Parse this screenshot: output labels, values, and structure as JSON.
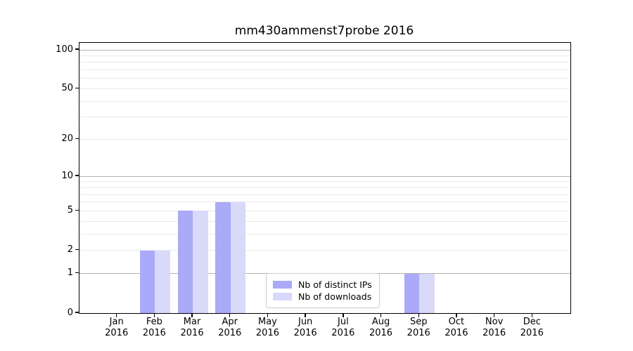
{
  "title": "mm430ammenst7probe 2016",
  "colors": {
    "distinct_ips": "#aaaaf8",
    "downloads": "#d9d9f9",
    "grid_major": "#b3b3b3",
    "grid_minor": "#e9e9e9",
    "axis": "#000000",
    "background": "#ffffff",
    "legend_border": "#cccccc"
  },
  "chart_data": {
    "type": "bar",
    "title": "mm430ammenst7probe 2016",
    "categories": [
      "Jan",
      "Feb",
      "Mar",
      "Apr",
      "May",
      "Jun",
      "Jul",
      "Aug",
      "Sep",
      "Oct",
      "Nov",
      "Dec"
    ],
    "category_year": "2016",
    "series": [
      {
        "name": "Nb of distinct IPs",
        "color_key": "distinct_ips",
        "values": [
          0,
          2,
          5,
          6,
          0,
          0,
          0,
          0,
          1,
          0,
          0,
          0
        ]
      },
      {
        "name": "Nb of downloads",
        "color_key": "downloads",
        "values": [
          0,
          2,
          5,
          6,
          0,
          0,
          0,
          0,
          1,
          0,
          0,
          0
        ]
      }
    ],
    "xlabel": "",
    "ylabel": "",
    "yscale": "log1p",
    "ylim": [
      0,
      113
    ],
    "yticks_labeled": [
      0,
      1,
      2,
      5,
      10,
      20,
      50,
      100
    ],
    "ytick_labels": [
      "0",
      "1",
      "2",
      "5",
      "10",
      "20",
      "50",
      "100"
    ],
    "gridlines_major": [
      1,
      10,
      100
    ],
    "gridlines_minor": [
      2,
      3,
      4,
      5,
      6,
      7,
      8,
      9,
      20,
      30,
      40,
      50,
      60,
      70,
      80,
      90
    ],
    "grid": true,
    "legend_position": "inside-bottom-center"
  },
  "legend": {
    "items": [
      {
        "label": "Nb of distinct IPs"
      },
      {
        "label": "Nb of downloads"
      }
    ]
  }
}
